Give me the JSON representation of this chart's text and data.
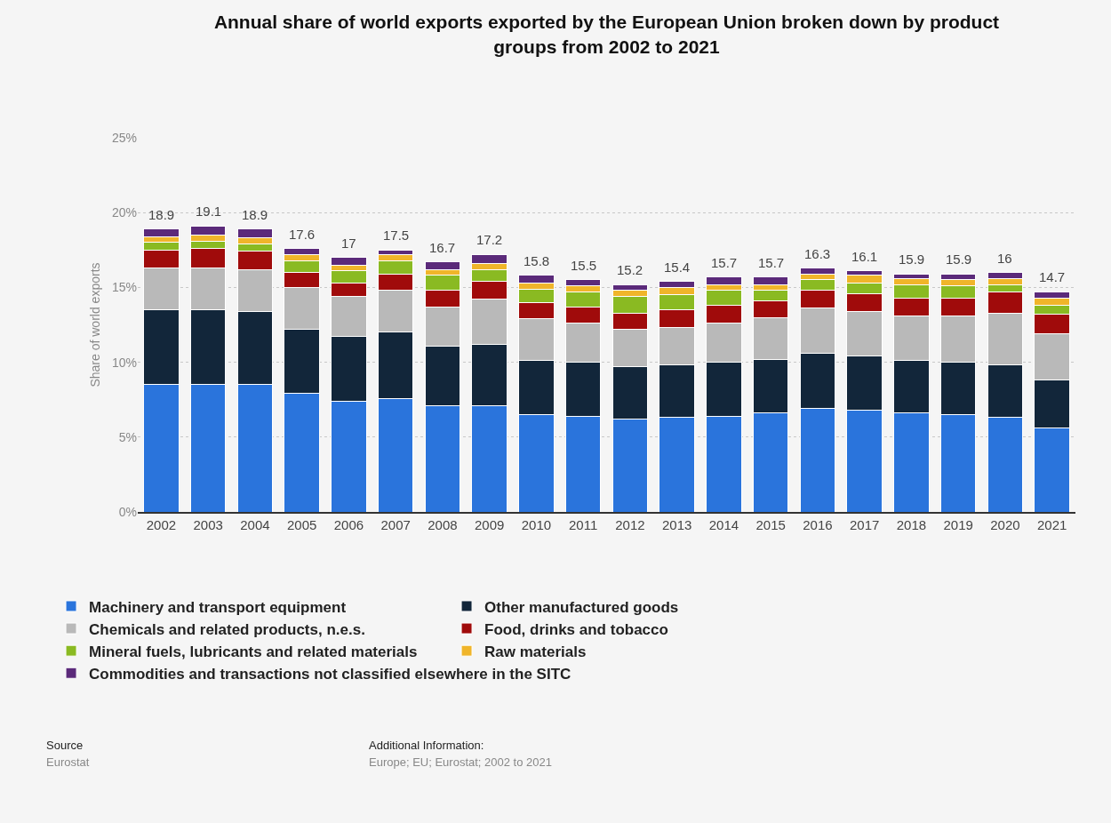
{
  "chart_data": {
    "type": "bar",
    "title": "Annual share of world exports exported by the European Union broken down by product groups from 2002 to 2021",
    "ylabel": "Share of world exports",
    "categories": [
      "2002",
      "2003",
      "2004",
      "2005",
      "2006",
      "2007",
      "2008",
      "2009",
      "2010",
      "2011",
      "2012",
      "2013",
      "2014",
      "2015",
      "2016",
      "2017",
      "2018",
      "2019",
      "2020",
      "2021"
    ],
    "stacked": true,
    "series": [
      {
        "name": "Machinery and transport equipment",
        "color": "#2a74dc",
        "values": [
          8.5,
          8.5,
          8.5,
          7.9,
          7.4,
          7.6,
          7.1,
          7.1,
          6.5,
          6.4,
          6.2,
          6.3,
          6.4,
          6.6,
          6.9,
          6.8,
          6.6,
          6.5,
          6.3,
          5.6
        ]
      },
      {
        "name": "Other manufactured goods",
        "color": "#12263a",
        "values": [
          5.0,
          5.0,
          4.9,
          4.3,
          4.3,
          4.4,
          4.0,
          4.1,
          3.6,
          3.6,
          3.5,
          3.5,
          3.6,
          3.6,
          3.7,
          3.6,
          3.5,
          3.5,
          3.5,
          3.2
        ]
      },
      {
        "name": "Chemicals and related products, n.e.s.",
        "color": "#b9b9b9",
        "values": [
          2.8,
          2.8,
          2.8,
          2.8,
          2.7,
          2.8,
          2.6,
          3.0,
          2.8,
          2.6,
          2.5,
          2.5,
          2.6,
          2.8,
          3.0,
          3.0,
          3.0,
          3.1,
          3.5,
          3.1
        ]
      },
      {
        "name": "Food, drinks and tobacco",
        "color": "#a00b0b",
        "values": [
          1.2,
          1.3,
          1.2,
          1.0,
          0.9,
          1.1,
          1.1,
          1.2,
          1.1,
          1.1,
          1.1,
          1.2,
          1.2,
          1.1,
          1.2,
          1.2,
          1.2,
          1.2,
          1.4,
          1.3
        ]
      },
      {
        "name": "Mineral fuels, lubricants and related materials",
        "color": "#8aba22",
        "values": [
          0.5,
          0.5,
          0.5,
          0.8,
          0.8,
          0.9,
          1.0,
          0.8,
          0.9,
          1.0,
          1.1,
          1.0,
          1.0,
          0.7,
          0.7,
          0.7,
          0.9,
          0.8,
          0.5,
          0.6
        ]
      },
      {
        "name": "Raw materials",
        "color": "#f0b52a",
        "values": [
          0.4,
          0.4,
          0.4,
          0.4,
          0.4,
          0.4,
          0.4,
          0.4,
          0.4,
          0.4,
          0.4,
          0.5,
          0.4,
          0.4,
          0.4,
          0.5,
          0.4,
          0.4,
          0.4,
          0.5
        ]
      },
      {
        "name": "Commodities and transactions not classified elsewhere in the SITC",
        "color": "#5b2a7a",
        "values": [
          0.5,
          0.6,
          0.6,
          0.4,
          0.5,
          0.3,
          0.5,
          0.6,
          0.5,
          0.4,
          0.4,
          0.4,
          0.5,
          0.5,
          0.4,
          0.3,
          0.3,
          0.4,
          0.4,
          0.4
        ]
      }
    ],
    "totals": [
      "18.9",
      "19.1",
      "18.9",
      "17.6",
      "17",
      "17.5",
      "16.7",
      "17.2",
      "15.8",
      "15.5",
      "15.2",
      "15.4",
      "15.7",
      "15.7",
      "16.3",
      "16.1",
      "15.9",
      "15.9",
      "16",
      "14.7"
    ],
    "ylim": [
      0,
      25
    ],
    "yticks": [
      {
        "value": 0,
        "label": "0%"
      },
      {
        "value": 5,
        "label": "5%"
      },
      {
        "value": 10,
        "label": "10%"
      },
      {
        "value": 15,
        "label": "15%"
      },
      {
        "value": 20,
        "label": "20%"
      },
      {
        "value": 25,
        "label": "25%"
      }
    ],
    "grid": "y",
    "legend": "bottom",
    "annotations": [
      "Source",
      "Eurostat",
      "Additional Information:",
      "Europe; EU; Eurostat; 2002 to 2021"
    ]
  }
}
